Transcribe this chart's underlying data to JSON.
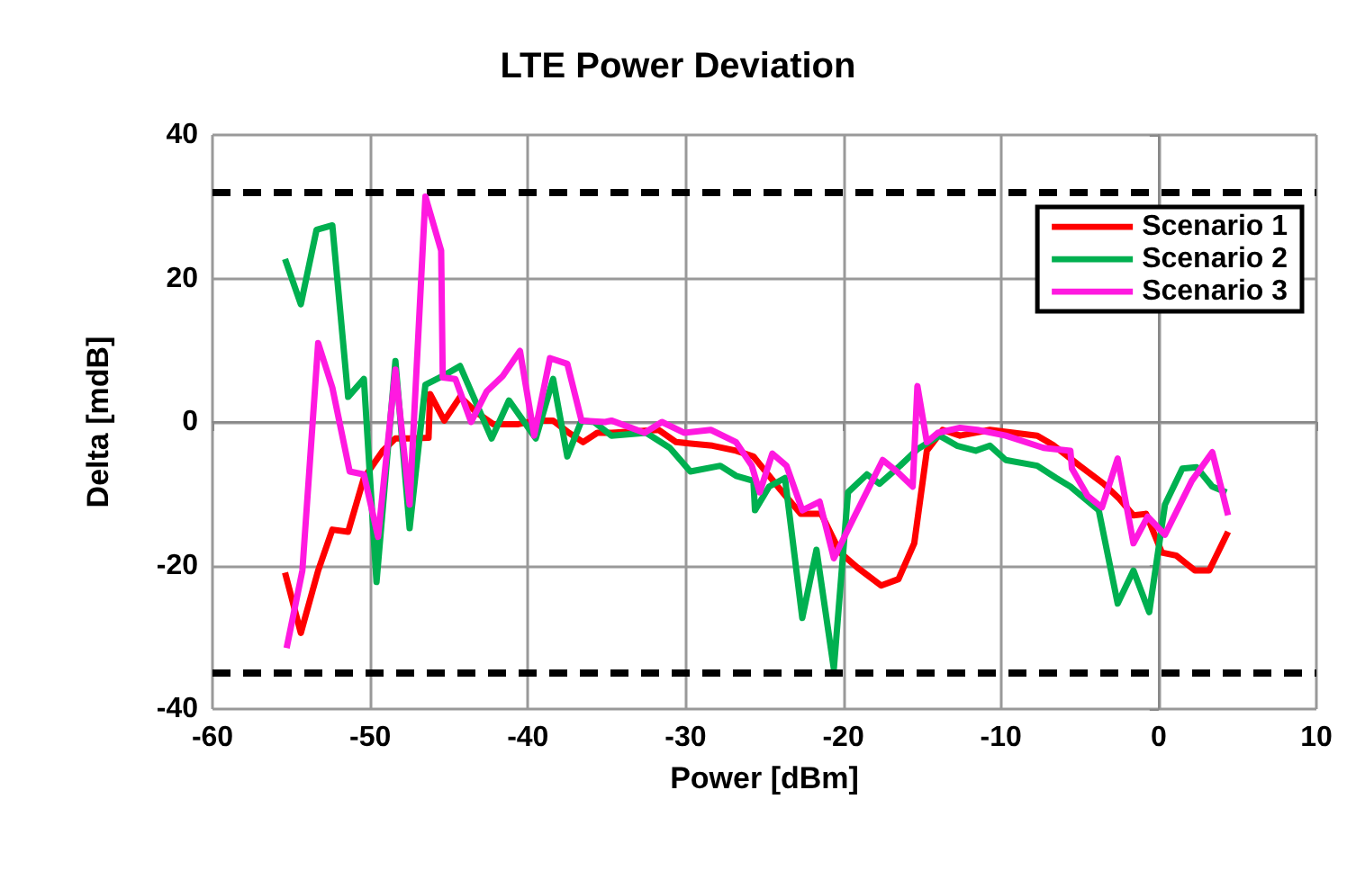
{
  "chart_data": {
    "type": "line",
    "title": "LTE Power Deviation",
    "xlabel": "Power [dBm]",
    "ylabel": "Delta [mdB]",
    "xlim": [
      -60,
      10
    ],
    "xticks": [
      -60,
      -50,
      -40,
      -30,
      -20,
      -10,
      0,
      10
    ],
    "ylim": [
      -40,
      40
    ],
    "yticks": [
      -40,
      -20,
      0,
      20,
      40
    ],
    "grid": true,
    "legend": "top right",
    "marker": "none",
    "line_style": "solid",
    "ref_lines": [
      {
        "axis": "y",
        "value": 32,
        "label": null,
        "color": "#000000",
        "line_style": "dashed"
      },
      {
        "axis": "y",
        "value": -35,
        "label": null,
        "color": "#000000",
        "line_style": "dashed"
      }
    ],
    "series": [
      {
        "name": "Scenario 1",
        "color": "#ff0000",
        "x": [
          -55.4,
          -54.4,
          -53.3,
          -52.4,
          -51.4,
          -50.4,
          -49.2,
          -48.4,
          -47.5,
          -46.3,
          -46.2,
          -45.3,
          -44.3,
          -43.3,
          -42.2,
          -40.6,
          -39.5,
          -38.4,
          -37.4,
          -36.5,
          -35.6,
          -34.7,
          -31.7,
          -30.6,
          -28.3,
          -26.8,
          -25.7,
          -24,
          -22.7,
          -21.4,
          -20.2,
          -19.1,
          -17.6,
          -16.5,
          -15.5,
          -14.7,
          -13.7,
          -12.6,
          -10.7,
          -7.7,
          -6.7,
          -5,
          -3.5,
          -2.5,
          -1.6,
          -0.8,
          0.2,
          1.1,
          2.3,
          3.2,
          4.4
        ],
        "values": [
          -21,
          -29.4,
          -20.7,
          -15,
          -15.3,
          -7.8,
          -4,
          -2.3,
          -2.3,
          -2.2,
          3.9,
          0.2,
          3.5,
          1.4,
          -0.3,
          -0.3,
          0.2,
          0.2,
          -1.5,
          -2.8,
          -1.5,
          -1.5,
          -1.1,
          -2.8,
          -3.3,
          -4,
          -4.8,
          -9.4,
          -12.8,
          -12.8,
          -18.2,
          -20.3,
          -22.8,
          -21.9,
          -16.9,
          -4,
          -1.1,
          -1.9,
          -1.1,
          -1.9,
          -3.2,
          -6.1,
          -8.6,
          -10.7,
          -13,
          -12.8,
          -18.2,
          -18.6,
          -20.7,
          -20.7,
          -15.3
        ]
      },
      {
        "name": "Scenario 2",
        "color": "#00b050",
        "x": [
          -55.4,
          -54.4,
          -53.4,
          -52.4,
          -51.4,
          -50.4,
          -49.6,
          -48.4,
          -47.5,
          -46.5,
          -45.4,
          -44.3,
          -42.3,
          -41.2,
          -39.5,
          -38.4,
          -37.5,
          -36.6,
          -35.8,
          -34.7,
          -32.5,
          -31,
          -29.7,
          -27.8,
          -26.8,
          -25.7,
          -25.6,
          -24.7,
          -23.7,
          -22.6,
          -21.7,
          -20.6,
          -19.7,
          -18.5,
          -17.7,
          -16.4,
          -15.3,
          -13.9,
          -12.8,
          -11.6,
          -10.7,
          -9.7,
          -7.7,
          -6.5,
          -5.6,
          -3.8,
          -2.6,
          -1.6,
          -0.6,
          0.4,
          1.5,
          2.4,
          3.4,
          4.3
        ],
        "values": [
          22.7,
          16.4,
          26.8,
          27.4,
          3.5,
          6,
          -22.3,
          8.5,
          -14.8,
          5.2,
          6.4,
          7.8,
          -2.3,
          3,
          -2.3,
          6,
          -4.8,
          0.2,
          0,
          -1.9,
          -1.5,
          -3.6,
          -6.9,
          -6.1,
          -7.5,
          -8.2,
          -12.3,
          -9,
          -7.8,
          -27.3,
          -17.8,
          -34.4,
          -9.8,
          -7.3,
          -8.6,
          -6.1,
          -3.8,
          -1.9,
          -3.3,
          -4,
          -3.3,
          -5.3,
          -6.1,
          -7.8,
          -9,
          -12.3,
          -25.3,
          -20.7,
          -26.5,
          -11.5,
          -6.5,
          -6.3,
          -9,
          -9.8
        ]
      },
      {
        "name": "Scenario 3",
        "color": "#ff19e0",
        "x": [
          -55.3,
          -54.3,
          -53.3,
          -52.4,
          -51.3,
          -50.4,
          -49.5,
          -48.4,
          -47.5,
          -46.5,
          -45.5,
          -45.4,
          -44.6,
          -43.6,
          -42.6,
          -41.6,
          -40.5,
          -39.6,
          -38.6,
          -37.5,
          -36.6,
          -35.1,
          -34.7,
          -32.6,
          -31.5,
          -30.1,
          -28.4,
          -26.8,
          -25.8,
          -25.3,
          -24.5,
          -23.6,
          -22.6,
          -21.5,
          -20.6,
          -19.3,
          -17.5,
          -16.6,
          -15.6,
          -15.3,
          -14.7,
          -14,
          -12.6,
          -11.5,
          -9.7,
          -7.3,
          -5.6,
          -5.5,
          -4.5,
          -3.6,
          -2.6,
          -1.6,
          -0.7,
          0.4,
          2.1,
          3.4,
          4.4
        ],
        "values": [
          -31.5,
          -20.7,
          11,
          4.8,
          -6.9,
          -7.3,
          -16,
          7.3,
          -11.5,
          31.4,
          23.9,
          6.2,
          6,
          0,
          4.3,
          6.4,
          9.9,
          -1.9,
          8.9,
          8.1,
          0.2,
          0,
          0.2,
          -1.5,
          0,
          -1.5,
          -1.1,
          -2.8,
          -6.1,
          -9.8,
          -4.4,
          -6.1,
          -12.3,
          -11.1,
          -19,
          -13.2,
          -5.3,
          -6.9,
          -9,
          5,
          -2.8,
          -1.5,
          -0.8,
          -1.1,
          -1.9,
          -3.6,
          -4,
          -6.5,
          -10.3,
          -11.9,
          -5.1,
          -16.9,
          -13.2,
          -15.7,
          -8.2,
          -4.2,
          -13
        ]
      }
    ]
  }
}
